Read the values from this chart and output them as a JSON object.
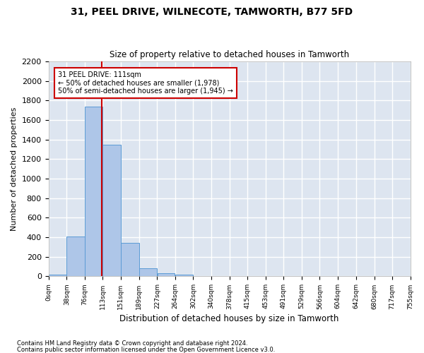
{
  "title1": "31, PEEL DRIVE, WILNECOTE, TAMWORTH, B77 5FD",
  "title2": "Size of property relative to detached houses in Tamworth",
  "xlabel": "Distribution of detached houses by size in Tamworth",
  "ylabel": "Number of detached properties",
  "footer1": "Contains HM Land Registry data © Crown copyright and database right 2024.",
  "footer2": "Contains public sector information licensed under the Open Government Licence v3.0.",
  "annotation_line1": "31 PEEL DRIVE: 111sqm",
  "annotation_line2": "← 50% of detached houses are smaller (1,978)",
  "annotation_line3": "50% of semi-detached houses are larger (1,945) →",
  "property_size": 111,
  "bin_edges": [
    0,
    38,
    76,
    113,
    151,
    189,
    227,
    264,
    302,
    340,
    378,
    415,
    453,
    491,
    529,
    566,
    604,
    642,
    680,
    717,
    755
  ],
  "bin_counts": [
    15,
    410,
    1735,
    1345,
    340,
    80,
    30,
    20,
    0,
    0,
    0,
    0,
    0,
    0,
    0,
    0,
    0,
    0,
    0,
    0
  ],
  "bar_color": "#aec6e8",
  "bar_edge_color": "#5b9bd5",
  "red_line_color": "#cc0000",
  "background_color": "#dde5f0",
  "grid_color": "#ffffff",
  "fig_background": "#ffffff",
  "ylim": [
    0,
    2200
  ],
  "yticks": [
    0,
    200,
    400,
    600,
    800,
    1000,
    1200,
    1400,
    1600,
    1800,
    2000,
    2200
  ]
}
